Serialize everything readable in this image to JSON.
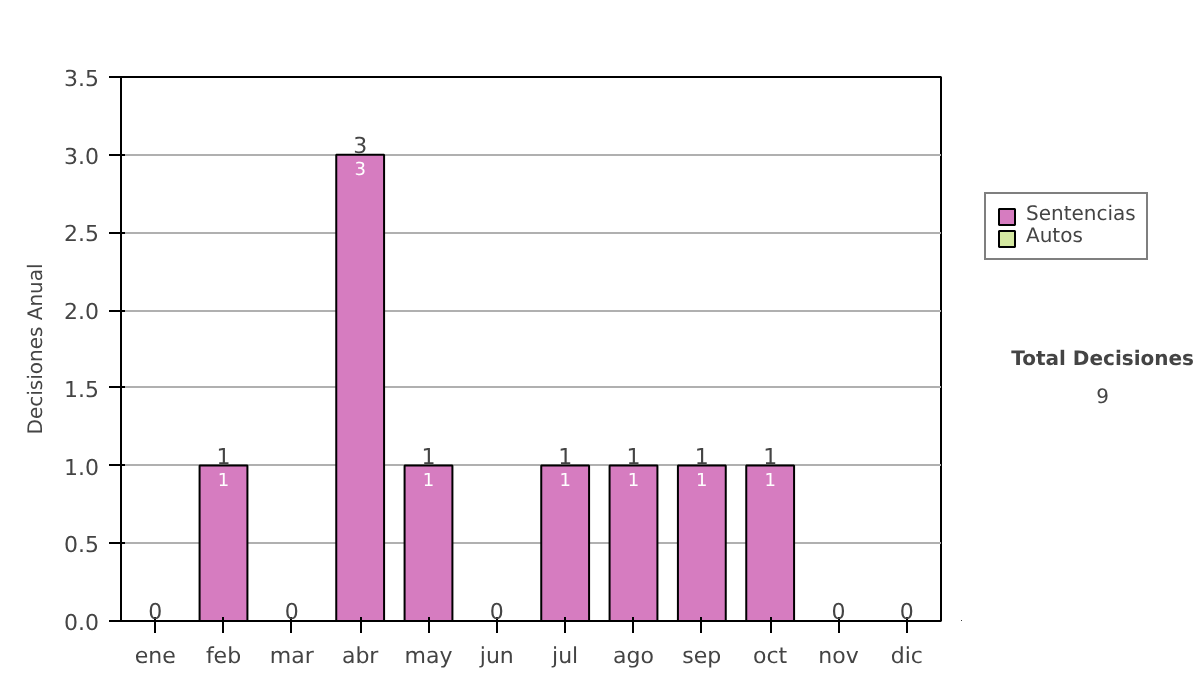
{
  "chart_data": {
    "type": "bar",
    "stacked": true,
    "ylabel": "Decisiones Anual",
    "categories": [
      "ene",
      "feb",
      "mar",
      "abr",
      "may",
      "jun",
      "jul",
      "ago",
      "sep",
      "oct",
      "nov",
      "dic"
    ],
    "series": [
      {
        "name": "Sentencias",
        "color": "#d67cc0",
        "values": [
          0,
          1,
          0,
          3,
          1,
          0,
          1,
          1,
          1,
          1,
          0,
          0
        ],
        "value_labels": [
          null,
          "1",
          null,
          "3",
          "1",
          null,
          "1",
          "1",
          "1",
          "1",
          null,
          null
        ]
      },
      {
        "name": "Autos",
        "color": "#d4e8a0",
        "values": [
          0,
          0,
          0,
          0,
          0,
          0,
          0,
          0,
          0,
          0,
          0,
          0
        ]
      }
    ],
    "totals": [
      "0",
      "1",
      "0",
      "3",
      "1",
      "0",
      "1",
      "1",
      "1",
      "1",
      "0",
      "0"
    ],
    "ylim": [
      0,
      3.5
    ],
    "yticks": [
      {
        "value": 0,
        "label": "0.0"
      },
      {
        "value": 0.5,
        "label": "0.5"
      },
      {
        "value": 1,
        "label": "1.0"
      },
      {
        "value": 1.5,
        "label": "1.5"
      },
      {
        "value": 2,
        "label": "2.0"
      },
      {
        "value": 2.5,
        "label": "2.5"
      },
      {
        "value": 3,
        "label": "3.0"
      },
      {
        "value": 3.5,
        "label": "3.5"
      }
    ],
    "grid": "y",
    "legend": "right",
    "annotations": [
      "Total Decisiones",
      "9"
    ]
  }
}
